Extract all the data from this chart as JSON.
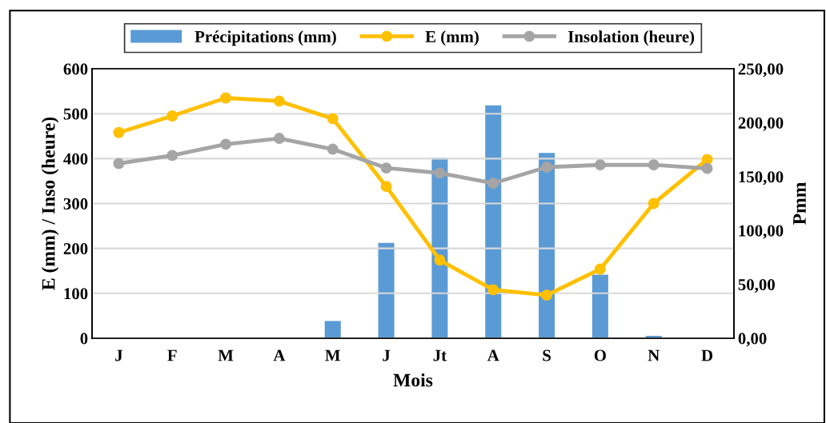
{
  "chart_data": {
    "type": "bar",
    "xlabel": "Mois",
    "ylabel": "E (mm) / Inso (heure)",
    "y2label": "Pmm",
    "categories": [
      "J",
      "F",
      "M",
      "A",
      "M",
      "J",
      "Jt",
      "A",
      "S",
      "O",
      "N",
      "D"
    ],
    "series": [
      {
        "name": "Précipitations (mm)",
        "axis": "y2",
        "color": "#5b9bd5",
        "values": [
          0,
          0,
          0,
          0,
          16,
          88.5,
          167.5,
          216,
          172,
          59,
          2.2,
          0
        ]
      },
      {
        "name": "E (mm)",
        "type": "line",
        "color": "#ffc000",
        "marker": "circle",
        "values": [
          458,
          495,
          535,
          528,
          489,
          338,
          174,
          108,
          96,
          154,
          300,
          398
        ]
      },
      {
        "name": "Insolation (heure)",
        "type": "line",
        "color": "#a5a5a5",
        "marker": "circle",
        "values": [
          389,
          407,
          432,
          445,
          421,
          379,
          368,
          345,
          381,
          386,
          386,
          378
        ]
      }
    ],
    "ylim": [
      0,
      600
    ],
    "yticks": [
      0,
      100,
      200,
      300,
      400,
      500,
      600
    ],
    "y2lim": [
      0,
      250
    ],
    "y2ticks": [
      {
        "value": 0,
        "label": "0,00"
      },
      {
        "value": 50,
        "label": "50,00"
      },
      {
        "value": 100,
        "label": "100,00"
      },
      {
        "value": 150,
        "label": "150,00"
      },
      {
        "value": 200,
        "label": "200,00"
      },
      {
        "value": 250,
        "label": "250,00"
      }
    ],
    "grid": "y",
    "legend": "top"
  }
}
